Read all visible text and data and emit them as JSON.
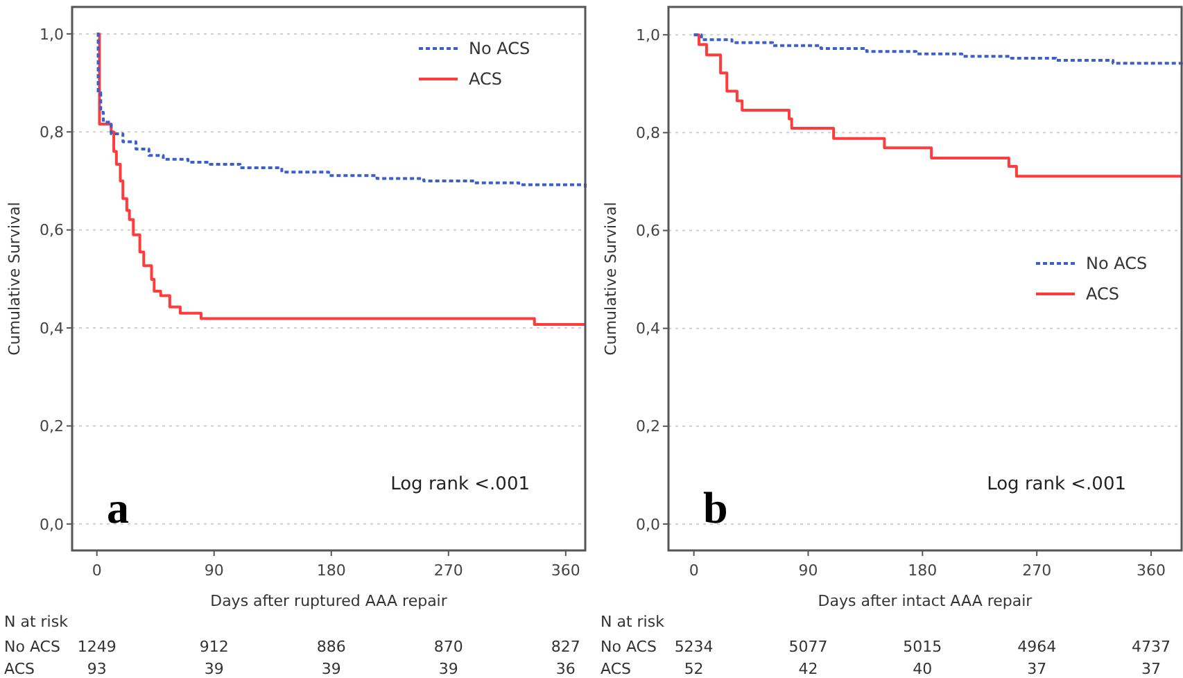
{
  "chart_data": [
    {
      "type": "step",
      "xlabel": "Days after ruptured AAA repair",
      "ylabel": "Cumulative Survival",
      "xlim": [
        -19,
        375
      ],
      "ylim": [
        -0.054,
        1.055
      ],
      "xticks": [
        0,
        90,
        180,
        270,
        360
      ],
      "yticks": [
        {
          "value": 0,
          "label": "0,0"
        },
        {
          "value": 0.2,
          "label": "0,2"
        },
        {
          "value": 0.4,
          "label": "0,4"
        },
        {
          "value": 0.6,
          "label": "0,6"
        },
        {
          "value": 0.8,
          "label": "0,8"
        },
        {
          "value": 1,
          "label": "1,0"
        }
      ],
      "grid": "y",
      "legend": "top right",
      "series": [
        {
          "name": "No ACS",
          "color": "#3a5fcd",
          "line_style": "dashed",
          "x": [
            0,
            1,
            3,
            5,
            11,
            20,
            30,
            40,
            51,
            70,
            87,
            110,
            142,
            178,
            215,
            251,
            290,
            324,
            375
          ],
          "values": [
            1,
            0.88,
            0.84,
            0.82,
            0.796,
            0.78,
            0.765,
            0.752,
            0.744,
            0.738,
            0.734,
            0.727,
            0.718,
            0.711,
            0.705,
            0.7,
            0.696,
            0.692,
            0.683
          ]
        },
        {
          "name": "ACS",
          "color": "#ff3b3b",
          "line_style": "solid",
          "x": [
            0,
            2,
            11,
            13,
            15,
            18,
            20,
            23,
            25,
            28,
            33,
            36,
            42,
            44,
            49,
            56,
            64,
            80,
            336,
            375
          ],
          "values": [
            1,
            0.816,
            0.8,
            0.76,
            0.734,
            0.7,
            0.664,
            0.64,
            0.621,
            0.59,
            0.555,
            0.527,
            0.499,
            0.475,
            0.466,
            0.443,
            0.43,
            0.419,
            0.407,
            0.407
          ]
        }
      ],
      "annotations": [
        "a",
        "Log rank <.001",
        "N at risk",
        "No ACS",
        "1249",
        "912",
        "886",
        "870",
        "827",
        "ACS",
        "93",
        "39",
        "39",
        "39",
        "36"
      ]
    },
    {
      "type": "step",
      "xlabel": "Days after intact AAA repair",
      "ylabel": "Cumulative Survival",
      "xlim": [
        -20,
        384
      ],
      "ylim": [
        -0.054,
        1.057
      ],
      "xticks": [
        0,
        90,
        180,
        270,
        360
      ],
      "yticks": [
        {
          "value": 0,
          "label": "0,0"
        },
        {
          "value": 0.2,
          "label": "0,2"
        },
        {
          "value": 0.4,
          "label": "0,4"
        },
        {
          "value": 0.6,
          "label": "0,6"
        },
        {
          "value": 0.8,
          "label": "0,8"
        },
        {
          "value": 1,
          "label": "1,0"
        }
      ],
      "grid": "y",
      "legend": "right",
      "series": [
        {
          "name": "No ACS",
          "color": "#3a5fcd",
          "line_style": "dashed",
          "x": [
            0,
            6,
            30,
            62,
            100,
            136,
            175,
            211,
            250,
            285,
            330,
            384
          ],
          "values": [
            1,
            0.99,
            0.984,
            0.978,
            0.972,
            0.966,
            0.961,
            0.956,
            0.952,
            0.948,
            0.942,
            0.935
          ]
        },
        {
          "name": "ACS",
          "color": "#ff3b3b",
          "line_style": "solid",
          "x": [
            0,
            4,
            10,
            21,
            26,
            34,
            38,
            75,
            77,
            110,
            150,
            187,
            248,
            254,
            384
          ],
          "values": [
            1,
            0.98,
            0.959,
            0.922,
            0.885,
            0.865,
            0.846,
            0.828,
            0.809,
            0.788,
            0.769,
            0.748,
            0.731,
            0.711,
            0.711
          ]
        }
      ],
      "annotations": [
        "b",
        "Log rank <.001",
        "N at risk",
        "No ACS",
        "5234",
        "5077",
        "5015",
        "4964",
        "4737",
        "ACS",
        "52",
        "42",
        "40",
        "37",
        "37"
      ]
    }
  ]
}
